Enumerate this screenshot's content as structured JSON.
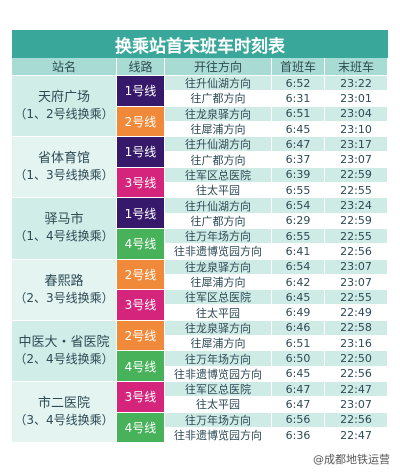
{
  "title": "换乘站首末班车时刻表",
  "header": [
    "站名",
    "线路",
    "开往方向",
    "首班车",
    "末班车"
  ],
  "stations": [
    {
      "name": "天府广场",
      "note": "（1、2号线换乘）",
      "lines": [
        {
          "line": "1号线",
          "color": "#36196a",
          "directions": [
            {
              "direction": "往升仙湖方向",
              "first": "6:52",
              "last": "23:22"
            },
            {
              "direction": "往广都方向",
              "first": "6:31",
              "last": "23:01"
            }
          ]
        },
        {
          "line": "2号线",
          "color": "#f08a3a",
          "directions": [
            {
              "direction": "往龙泉驿方向",
              "first": "6:51",
              "last": "23:04"
            },
            {
              "direction": "往犀浦方向",
              "first": "6:45",
              "last": "23:10"
            }
          ]
        }
      ]
    },
    {
      "name": "省体育馆",
      "note": "（1、3号线换乘）",
      "lines": [
        {
          "line": "1号线",
          "color": "#36196a",
          "directions": [
            {
              "direction": "往升仙湖方向",
              "first": "6:47",
              "last": "23:17"
            },
            {
              "direction": "往广都方向",
              "first": "6:37",
              "last": "23:07"
            }
          ]
        },
        {
          "line": "3号线",
          "color": "#d5247c",
          "directions": [
            {
              "direction": "往军区总医院",
              "first": "6:39",
              "last": "22:59"
            },
            {
              "direction": "往太平园",
              "first": "6:55",
              "last": "22:55"
            }
          ]
        }
      ]
    },
    {
      "name": "驿马市",
      "note": "（1、4号线换乘）",
      "lines": [
        {
          "line": "1号线",
          "color": "#36196a",
          "directions": [
            {
              "direction": "往升仙湖方向",
              "first": "6:54",
              "last": "23:24"
            },
            {
              "direction": "往广都方向",
              "first": "6:29",
              "last": "22:59"
            }
          ]
        },
        {
          "line": "4号线",
          "color": "#47b259",
          "directions": [
            {
              "direction": "往万年场方向",
              "first": "6:55",
              "last": "22:55"
            },
            {
              "direction": "往非遗博览园方向",
              "first": "6:41",
              "last": "22:56"
            }
          ]
        }
      ]
    },
    {
      "name": "春熙路",
      "note": "（2、3号线换乘）",
      "lines": [
        {
          "line": "2号线",
          "color": "#f08a3a",
          "directions": [
            {
              "direction": "往龙泉驿方向",
              "first": "6:54",
              "last": "23:07"
            },
            {
              "direction": "往犀浦方向",
              "first": "6:42",
              "last": "23:07"
            }
          ]
        },
        {
          "line": "3号线",
          "color": "#d5247c",
          "directions": [
            {
              "direction": "往军区总医院",
              "first": "6:45",
              "last": "22:55"
            },
            {
              "direction": "往太平园",
              "first": "6:49",
              "last": "22:49"
            }
          ]
        }
      ]
    },
    {
      "name": "中医大・省医院",
      "note": "（2、4号线换乘）",
      "lines": [
        {
          "line": "2号线",
          "color": "#f08a3a",
          "directions": [
            {
              "direction": "往龙泉驿方向",
              "first": "6:46",
              "last": "22:58"
            },
            {
              "direction": "往犀浦方向",
              "first": "6:51",
              "last": "23:16"
            }
          ]
        },
        {
          "line": "4号线",
          "color": "#47b259",
          "directions": [
            {
              "direction": "往万年场方向",
              "first": "6:50",
              "last": "22:50"
            },
            {
              "direction": "往非遗博览园方向",
              "first": "6:45",
              "last": "22:56"
            }
          ]
        }
      ]
    },
    {
      "name": "市二医院",
      "note": "（3、4号线换乘）",
      "lines": [
        {
          "line": "3号线",
          "color": "#d5247c",
          "directions": [
            {
              "direction": "往军区总医院",
              "first": "6:47",
              "last": "22:47"
            },
            {
              "direction": "往太平园",
              "first": "6:47",
              "last": "23:07"
            }
          ]
        },
        {
          "line": "4号线",
          "color": "#47b259",
          "directions": [
            {
              "direction": "往万年场方向",
              "first": "6:56",
              "last": "22:56"
            },
            {
              "direction": "往非遗博览园方向",
              "first": "6:36",
              "last": "22:47"
            }
          ]
        }
      ]
    }
  ],
  "watermark": "@成都地铁运营"
}
